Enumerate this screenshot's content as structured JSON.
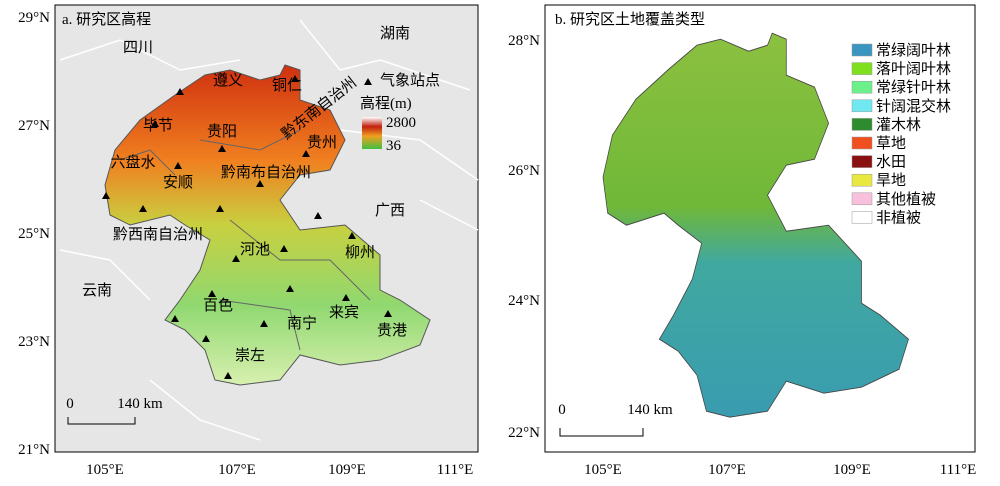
{
  "panels": [
    {
      "title": "a. 研究区高程",
      "lat_ticks": [
        "29°N",
        "27°N",
        "25°N",
        "23°N",
        "21°N"
      ],
      "lon_ticks": [
        "105°E",
        "107°E",
        "109°E",
        "111°E"
      ],
      "place_labels": [
        "四川",
        "湖南",
        "遵义",
        "铜仁",
        "黔东南自治州",
        "毕节",
        "贵阳",
        "贵州",
        "六盘水",
        "安顺",
        "黔南布自治州",
        "广西",
        "黔西南自治州",
        "河池",
        "柳州",
        "云南",
        "百色",
        "南宁",
        "来宾",
        "贵港",
        "崇左"
      ],
      "legend": {
        "station": "气象站点",
        "elevation_title": "高程(m)",
        "elevation_max": 2800,
        "elevation_min": 36
      },
      "scale_bar": {
        "start": "0",
        "end": "140 km"
      }
    },
    {
      "title": "b. 研究区土地覆盖类型",
      "lat_ticks": [
        "28°N",
        "26°N",
        "24°N",
        "22°N"
      ],
      "lon_ticks": [
        "105°E",
        "107°E",
        "109°E",
        "111°E"
      ],
      "legend": [
        "常绿阔叶林",
        "落叶阔叶林",
        "常绿针叶林",
        "针阔混交林",
        "灌木林",
        "草地",
        "水田",
        "旱地",
        "其他植被",
        "非植被"
      ],
      "scale_bar": {
        "start": "0",
        "end": "140 km"
      }
    }
  ]
}
